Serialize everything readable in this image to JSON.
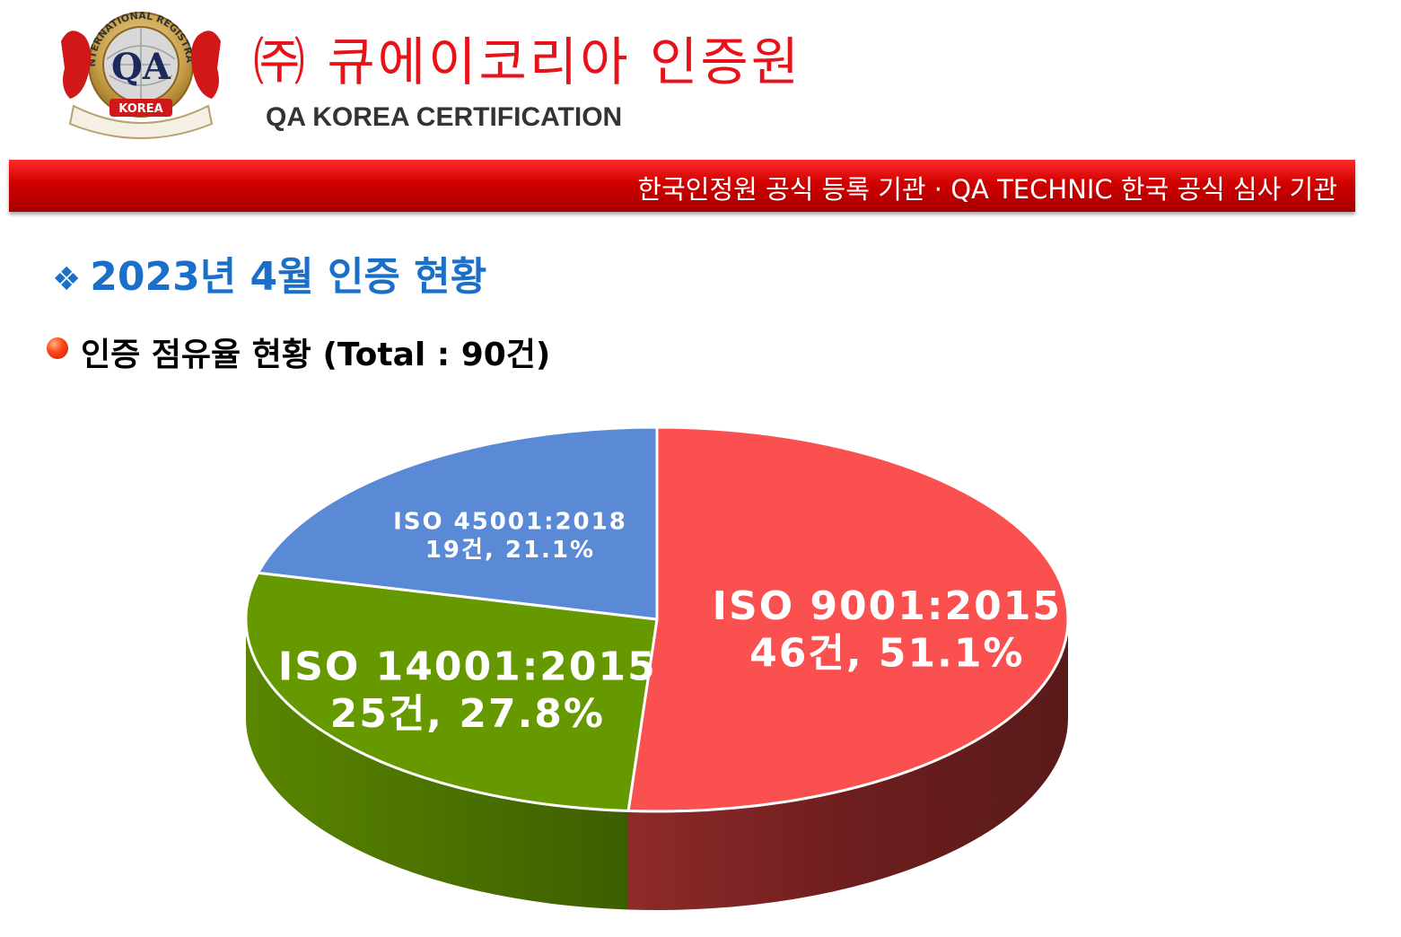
{
  "header": {
    "company_name": "㈜ 큐에이코리아 인증원",
    "company_name_en": "QA KOREA CERTIFICATION",
    "logo": {
      "arc_text": "INTERNATIONAL REGISTRAR",
      "center_text": "QA",
      "ribbon_text": "KOREA"
    }
  },
  "banner": {
    "text": "한국인정원 공식 등록 기관  ·  QA TECHNIC 한국 공식 심사 기관"
  },
  "section": {
    "bullet": "❖",
    "title": "2023년 4월 인증 현황"
  },
  "chart_data": {
    "type": "pie",
    "title": "인증 점유율 현황 (Total : 90건)",
    "total": 90,
    "style": "3d",
    "slices": [
      {
        "label": "ISO 9001:2015",
        "count": 46,
        "count_text": "46건, 51.1%",
        "percent": 51.1,
        "color": "#fa5050",
        "side_color": "#7a2222"
      },
      {
        "label": "ISO 14001:2015",
        "count": 25,
        "count_text": "25건, 27.8%",
        "percent": 27.8,
        "color": "#669900",
        "side_color": "#4a6e00"
      },
      {
        "label": "ISO 45001:2018",
        "count": 19,
        "count_text": "19건, 21.1%",
        "percent": 21.1,
        "color": "#5a8ad6",
        "side_color": "#3a5f9e"
      }
    ]
  }
}
